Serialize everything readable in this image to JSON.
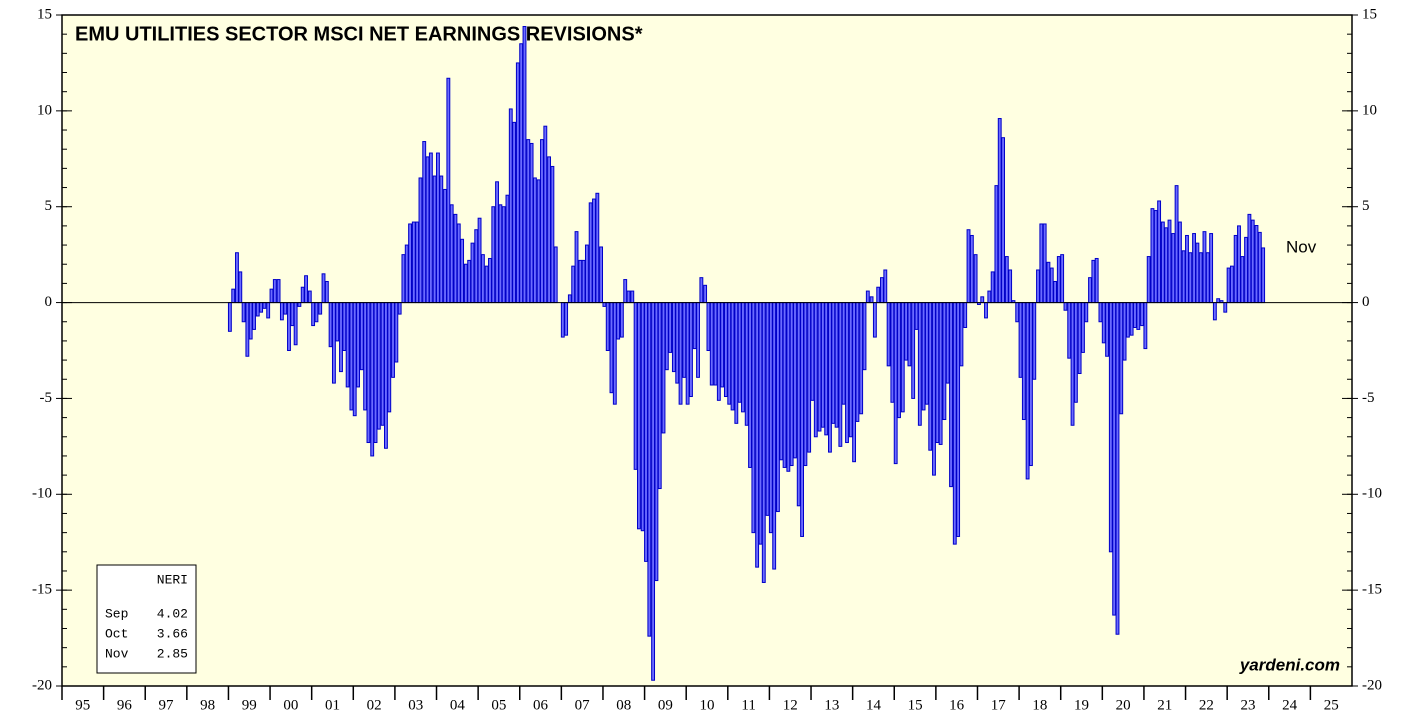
{
  "chart_data": {
    "type": "bar",
    "title": "EMU UTILITIES SECTOR MSCI NET EARNINGS REVISIONS*",
    "annotation": "Nov",
    "source": "yardeni.com",
    "legend_table": {
      "header": "NERI",
      "rows": [
        {
          "month": "Sep",
          "value": "4.02"
        },
        {
          "month": "Oct",
          "value": "3.66"
        },
        {
          "month": "Nov",
          "value": "2.85"
        }
      ]
    },
    "color": "#6b6bff",
    "edge_color": "#0000c8",
    "background": "#ffffe1",
    "ylim": [
      -20,
      15
    ],
    "yticks": [
      -20,
      -15,
      -10,
      -5,
      0,
      5,
      10,
      15
    ],
    "xlim": [
      1995,
      2026
    ],
    "xticks": [
      {
        "value": 1995,
        "label": "95"
      },
      {
        "value": 1996,
        "label": "96"
      },
      {
        "value": 1997,
        "label": "97"
      },
      {
        "value": 1998,
        "label": "98"
      },
      {
        "value": 1999,
        "label": "99"
      },
      {
        "value": 2000,
        "label": "00"
      },
      {
        "value": 2001,
        "label": "01"
      },
      {
        "value": 2002,
        "label": "02"
      },
      {
        "value": 2003,
        "label": "03"
      },
      {
        "value": 2004,
        "label": "04"
      },
      {
        "value": 2005,
        "label": "05"
      },
      {
        "value": 2006,
        "label": "06"
      },
      {
        "value": 2007,
        "label": "07"
      },
      {
        "value": 2008,
        "label": "08"
      },
      {
        "value": 2009,
        "label": "09"
      },
      {
        "value": 2010,
        "label": "10"
      },
      {
        "value": 2011,
        "label": "11"
      },
      {
        "value": 2012,
        "label": "12"
      },
      {
        "value": 2013,
        "label": "13"
      },
      {
        "value": 2014,
        "label": "14"
      },
      {
        "value": 2015,
        "label": "15"
      },
      {
        "value": 2016,
        "label": "16"
      },
      {
        "value": 2017,
        "label": "17"
      },
      {
        "value": 2018,
        "label": "18"
      },
      {
        "value": 2019,
        "label": "19"
      },
      {
        "value": 2020,
        "label": "20"
      },
      {
        "value": 2021,
        "label": "21"
      },
      {
        "value": 2022,
        "label": "22"
      },
      {
        "value": 2023,
        "label": "23"
      },
      {
        "value": 2024,
        "label": "24"
      },
      {
        "value": 2025,
        "label": "25"
      }
    ],
    "x": [
      1999,
      1999.08,
      1999.17,
      1999.25,
      1999.33,
      1999.42,
      1999.5,
      1999.58,
      1999.67,
      1999.75,
      1999.83,
      1999.92,
      2000,
      2000.08,
      2000.17,
      2000.25,
      2000.33,
      2000.42,
      2000.5,
      2000.58,
      2000.67,
      2000.75,
      2000.83,
      2000.92,
      2001,
      2001.08,
      2001.17,
      2001.25,
      2001.33,
      2001.42,
      2001.5,
      2001.58,
      2001.67,
      2001.75,
      2001.83,
      2001.92,
      2002,
      2002.08,
      2002.17,
      2002.25,
      2002.33,
      2002.42,
      2002.5,
      2002.58,
      2002.67,
      2002.75,
      2002.83,
      2002.92,
      2003,
      2003.08,
      2003.17,
      2003.25,
      2003.33,
      2003.42,
      2003.5,
      2003.58,
      2003.67,
      2003.75,
      2003.83,
      2003.92,
      2004,
      2004.08,
      2004.17,
      2004.25,
      2004.33,
      2004.42,
      2004.5,
      2004.58,
      2004.67,
      2004.75,
      2004.83,
      2004.92,
      2005,
      2005.08,
      2005.17,
      2005.25,
      2005.33,
      2005.42,
      2005.5,
      2005.58,
      2005.67,
      2005.75,
      2005.83,
      2005.92,
      2006,
      2006.08,
      2006.17,
      2006.25,
      2006.33,
      2006.42,
      2006.5,
      2006.58,
      2006.67,
      2006.75,
      2006.83,
      2006.92,
      2007,
      2007.08,
      2007.17,
      2007.25,
      2007.33,
      2007.42,
      2007.5,
      2007.58,
      2007.67,
      2007.75,
      2007.83,
      2007.92,
      2008,
      2008.08,
      2008.17,
      2008.25,
      2008.33,
      2008.42,
      2008.5,
      2008.58,
      2008.67,
      2008.75,
      2008.83,
      2008.92,
      2009,
      2009.08,
      2009.17,
      2009.25,
      2009.33,
      2009.42,
      2009.5,
      2009.58,
      2009.67,
      2009.75,
      2009.83,
      2009.92,
      2010,
      2010.08,
      2010.17,
      2010.25,
      2010.33,
      2010.42,
      2010.5,
      2010.58,
      2010.67,
      2010.75,
      2010.83,
      2010.92,
      2011,
      2011.08,
      2011.17,
      2011.25,
      2011.33,
      2011.42,
      2011.5,
      2011.58,
      2011.67,
      2011.75,
      2011.83,
      2011.92,
      2012,
      2012.08,
      2012.17,
      2012.25,
      2012.33,
      2012.42,
      2012.5,
      2012.58,
      2012.67,
      2012.75,
      2012.83,
      2012.92,
      2013,
      2013.08,
      2013.17,
      2013.25,
      2013.33,
      2013.42,
      2013.5,
      2013.58,
      2013.67,
      2013.75,
      2013.83,
      2013.92,
      2014,
      2014.08,
      2014.17,
      2014.25,
      2014.33,
      2014.42,
      2014.5,
      2014.58,
      2014.67,
      2014.75,
      2014.83,
      2014.92,
      2015,
      2015.08,
      2015.17,
      2015.25,
      2015.33,
      2015.42,
      2015.5,
      2015.58,
      2015.67,
      2015.75,
      2015.83,
      2015.92,
      2016,
      2016.08,
      2016.17,
      2016.25,
      2016.33,
      2016.42,
      2016.5,
      2016.58,
      2016.67,
      2016.75,
      2016.83,
      2016.92,
      2017,
      2017.08,
      2017.17,
      2017.25,
      2017.33,
      2017.42,
      2017.5,
      2017.58,
      2017.67,
      2017.75,
      2017.83,
      2017.92,
      2018,
      2018.08,
      2018.17,
      2018.25,
      2018.33,
      2018.42,
      2018.5,
      2018.58,
      2018.67,
      2018.75,
      2018.83,
      2018.92,
      2019,
      2019.08,
      2019.17,
      2019.25,
      2019.33,
      2019.42,
      2019.5,
      2019.58,
      2019.67,
      2019.75,
      2019.83,
      2019.92,
      2020,
      2020.08,
      2020.17,
      2020.25,
      2020.33,
      2020.42,
      2020.5,
      2020.58,
      2020.67,
      2020.75,
      2020.83,
      2020.92,
      2021,
      2021.08,
      2021.17,
      2021.25,
      2021.33,
      2021.42,
      2021.5,
      2021.58,
      2021.67,
      2021.75,
      2021.83,
      2021.92,
      2022,
      2022.08,
      2022.17,
      2022.25,
      2022.33,
      2022.42,
      2022.5,
      2022.58,
      2022.67,
      2022.75,
      2022.83,
      2022.92,
      2023,
      2023.08,
      2023.17,
      2023.25,
      2023.33,
      2023.42,
      2023.5,
      2023.58,
      2023.67,
      2023.75,
      2023.83
    ],
    "values": [
      -1.5,
      0.7,
      2.6,
      1.6,
      -1.0,
      -2.8,
      -1.9,
      -1.4,
      -0.7,
      -0.5,
      -0.3,
      -0.8,
      0.7,
      1.2,
      1.2,
      -0.9,
      -0.6,
      -2.5,
      -1.2,
      -2.2,
      -0.2,
      0.8,
      1.4,
      0.6,
      -1.2,
      -1.0,
      -0.6,
      1.5,
      1.1,
      -2.3,
      -4.2,
      -2.0,
      -3.6,
      -2.5,
      -4.4,
      -5.6,
      -5.9,
      -4.4,
      -3.5,
      -5.6,
      -7.3,
      -8.0,
      -7.3,
      -6.6,
      -6.4,
      -7.6,
      -5.7,
      -3.9,
      -3.1,
      -0.6,
      2.5,
      3.0,
      4.1,
      4.2,
      4.2,
      6.5,
      8.4,
      7.6,
      7.8,
      6.6,
      7.8,
      6.6,
      5.9,
      11.7,
      5.1,
      4.6,
      4.1,
      3.3,
      2.0,
      2.2,
      3.1,
      3.8,
      4.4,
      2.5,
      1.9,
      2.3,
      5.0,
      6.3,
      5.1,
      5.0,
      5.6,
      10.1,
      9.4,
      12.5,
      13.5,
      14.4,
      8.5,
      8.3,
      6.5,
      6.4,
      8.5,
      9.2,
      7.6,
      7.1,
      2.9,
      0.0,
      -1.8,
      -1.7,
      0.4,
      1.9,
      3.7,
      2.2,
      2.2,
      3.0,
      5.2,
      5.4,
      5.7,
      2.9,
      -0.2,
      -2.5,
      -4.7,
      -5.3,
      -1.9,
      -1.8,
      1.2,
      0.6,
      0.6,
      -8.7,
      -11.8,
      -11.9,
      -13.5,
      -17.4,
      -19.7,
      -14.5,
      -9.7,
      -6.8,
      -3.5,
      -2.6,
      -3.6,
      -4.2,
      -5.3,
      -3.9,
      -5.3,
      -4.9,
      -2.4,
      -3.9,
      1.3,
      0.9,
      -2.5,
      -4.3,
      -4.3,
      -5.1,
      -4.4,
      -4.9,
      -5.3,
      -5.6,
      -6.3,
      -5.2,
      -5.7,
      -6.4,
      -8.6,
      -12.0,
      -13.8,
      -12.6,
      -14.6,
      -11.1,
      -12.0,
      -13.9,
      -10.9,
      -8.2,
      -8.6,
      -8.8,
      -8.5,
      -8.1,
      -10.6,
      -12.2,
      -8.5,
      -7.8,
      -5.1,
      -7.0,
      -6.7,
      -6.5,
      -6.9,
      -7.8,
      -6.3,
      -6.5,
      -7.5,
      -5.3,
      -7.3,
      -7.0,
      -8.3,
      -6.2,
      -5.8,
      -3.5,
      0.6,
      0.3,
      -1.8,
      0.8,
      1.3,
      1.7,
      -3.3,
      -5.2,
      -8.4,
      -6.0,
      -5.7,
      -3.0,
      -3.3,
      -5.0,
      -1.4,
      -6.4,
      -5.6,
      -5.3,
      -7.7,
      -9.0,
      -7.3,
      -7.4,
      -6.1,
      -4.2,
      -9.6,
      -12.6,
      -12.2,
      -3.3,
      -1.3,
      3.8,
      3.5,
      2.5,
      -0.1,
      0.3,
      -0.8,
      0.6,
      1.6,
      6.1,
      9.6,
      8.6,
      2.4,
      1.7,
      0.1,
      -1.0,
      -3.9,
      -6.1,
      -9.2,
      -8.5,
      -4.0,
      1.7,
      4.1,
      4.1,
      2.1,
      1.8,
      1.1,
      2.4,
      2.5,
      -0.4,
      -2.9,
      -6.4,
      -5.2,
      -3.7,
      -2.6,
      -1.0,
      1.3,
      2.2,
      2.3,
      -1.0,
      -2.1,
      -2.8,
      -13.0,
      -16.3,
      -17.3,
      -5.8,
      -3.0,
      -1.8,
      -1.7,
      -1.3,
      -1.4,
      -1.2,
      -2.4,
      2.4,
      4.9,
      4.8,
      5.3,
      4.2,
      3.9,
      4.3,
      3.6,
      6.1,
      4.2,
      2.7,
      3.5,
      2.6,
      3.6,
      3.1,
      2.6,
      3.7,
      2.6,
      3.6,
      -0.9,
      0.2,
      0.1,
      -0.5,
      1.8,
      1.9,
      3.5,
      4.0,
      2.4,
      3.4,
      4.6,
      4.3,
      4.02,
      3.66,
      2.85
    ]
  }
}
